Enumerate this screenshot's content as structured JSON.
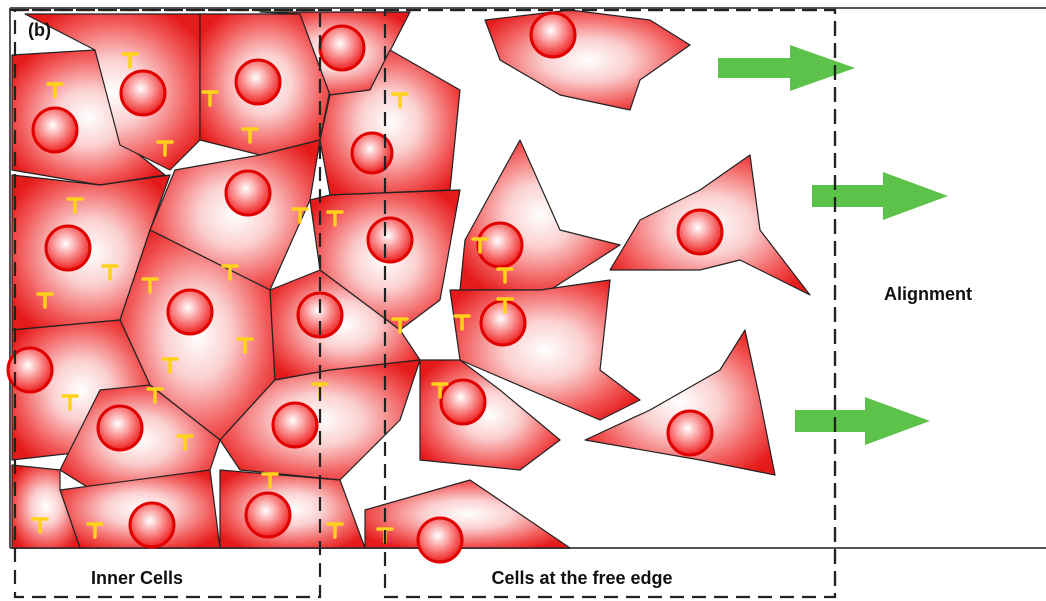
{
  "panel_label": "(b)",
  "annotations": {
    "right": "Alignment"
  },
  "regions": [
    {
      "label": "Inner Cells"
    },
    {
      "label": "Cells at the free edge"
    }
  ]
}
